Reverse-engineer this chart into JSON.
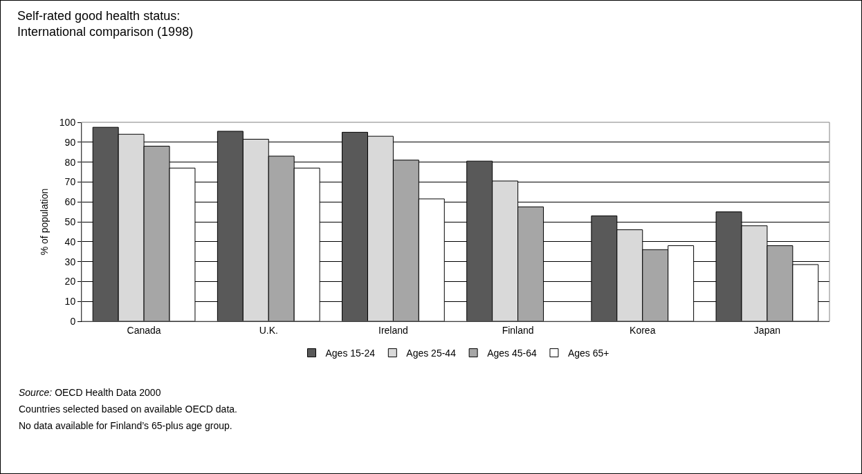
{
  "chart_data": {
    "type": "bar",
    "title": "Self-rated good health status:\nInternational comparison (1998)",
    "ylabel": "% of population",
    "categories": [
      "Canada",
      "U.K.",
      "Ireland",
      "Finland",
      "Korea",
      "Japan"
    ],
    "series": [
      {
        "name": "Ages 15-24",
        "color": "#595959",
        "values": [
          97.5,
          95.5,
          95,
          80.5,
          53,
          55
        ]
      },
      {
        "name": "Ages 25-44",
        "color": "#d9d9d9",
        "values": [
          94,
          91.5,
          93,
          70.5,
          46,
          48
        ]
      },
      {
        "name": "Ages 45-64",
        "color": "#a6a6a6",
        "values": [
          88,
          83,
          81,
          57.5,
          36,
          38
        ]
      },
      {
        "name": "Ages 65+",
        "color": "#ffffff",
        "values": [
          77,
          77,
          61.5,
          null,
          38,
          28.5
        ]
      }
    ],
    "ylim": [
      0,
      100
    ],
    "yticks": [
      0,
      10,
      20,
      30,
      40,
      50,
      60,
      70,
      80,
      90,
      100
    ],
    "grid": "y",
    "legend": "bottom",
    "annotations": [
      "Source: OECD Health Data 2000",
      "Countries selected based on available OECD data.",
      "No data available for Finland’s 65-plus age group."
    ]
  }
}
